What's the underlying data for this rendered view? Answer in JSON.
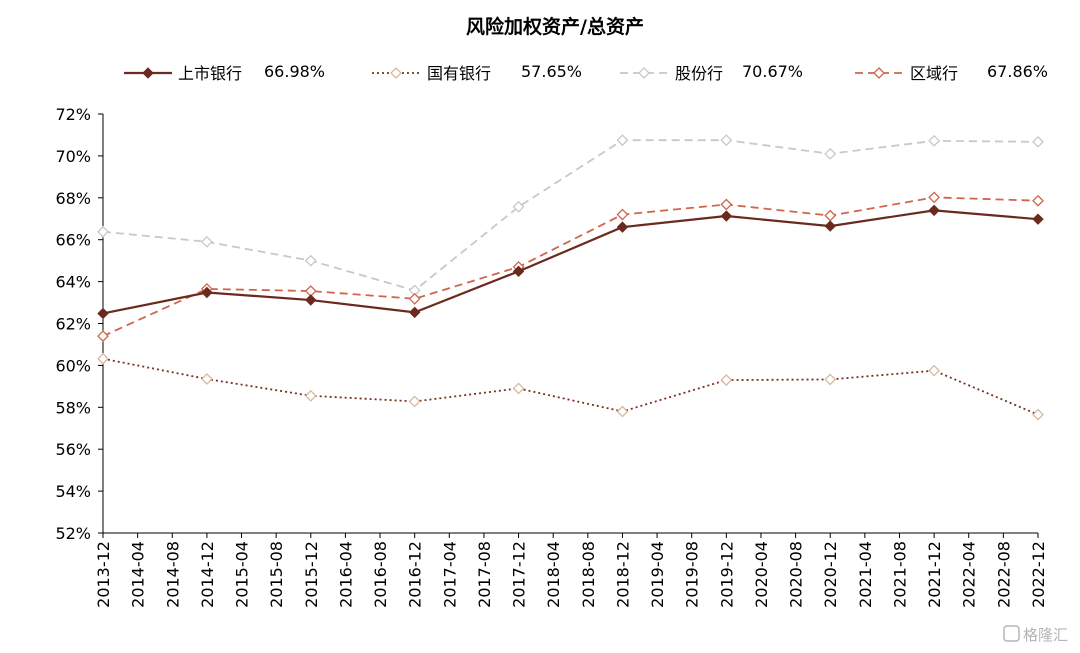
{
  "chart_data": {
    "type": "line",
    "title": "风险加权资产/总资产",
    "xlabel": "",
    "ylabel": "",
    "ylim": [
      0.52,
      0.72
    ],
    "y_ticks": [
      "52%",
      "54%",
      "56%",
      "58%",
      "60%",
      "62%",
      "64%",
      "66%",
      "68%",
      "70%",
      "72%"
    ],
    "x_ticks": [
      "2013-12",
      "2014-04",
      "2014-08",
      "2014-12",
      "2015-04",
      "2015-08",
      "2015-12",
      "2016-04",
      "2016-08",
      "2016-12",
      "2017-04",
      "2017-08",
      "2017-12",
      "2018-04",
      "2018-08",
      "2018-12",
      "2019-04",
      "2019-08",
      "2019-12",
      "2020-04",
      "2020-08",
      "2020-12",
      "2021-04",
      "2021-08",
      "2021-12",
      "2022-04",
      "2022-08",
      "2022-12"
    ],
    "x": [
      "2013-12",
      "2014-12",
      "2015-12",
      "2016-12",
      "2017-12",
      "2018-12",
      "2019-12",
      "2020-12",
      "2021-12",
      "2022-12"
    ],
    "grid": false,
    "legend_position": "top",
    "series": [
      {
        "name": "上市银行",
        "latest_label": "66.98%",
        "style": "solid",
        "marker": "filled-diamond",
        "color": "#6b2a1f",
        "values": [
          0.6248,
          0.6348,
          0.6312,
          0.6253,
          0.6449,
          0.666,
          0.6713,
          0.6665,
          0.674,
          0.6698
        ]
      },
      {
        "name": "国有银行",
        "latest_label": "57.65%",
        "style": "dotted",
        "marker": "hollow-diamond",
        "color": "#7a3020",
        "marker_color": "#d8b99b",
        "values": [
          0.6032,
          0.5935,
          0.5855,
          0.5828,
          0.589,
          0.578,
          0.593,
          0.5933,
          0.5975,
          0.5765
        ]
      },
      {
        "name": "股份行",
        "latest_label": "70.67%",
        "style": "dashed",
        "marker": "hollow-diamond",
        "color": "#c8c8c8",
        "values": [
          0.6638,
          0.659,
          0.65,
          0.6358,
          0.6757,
          0.7075,
          0.7075,
          0.701,
          0.7072,
          0.7067
        ]
      },
      {
        "name": "区域行",
        "latest_label": "67.86%",
        "style": "dashed",
        "marker": "hollow-diamond",
        "color": "#d0654a",
        "values": [
          0.614,
          0.6365,
          0.6355,
          0.6318,
          0.647,
          0.672,
          0.6768,
          0.6715,
          0.6802,
          0.6786
        ]
      }
    ]
  },
  "watermark": "格隆汇"
}
